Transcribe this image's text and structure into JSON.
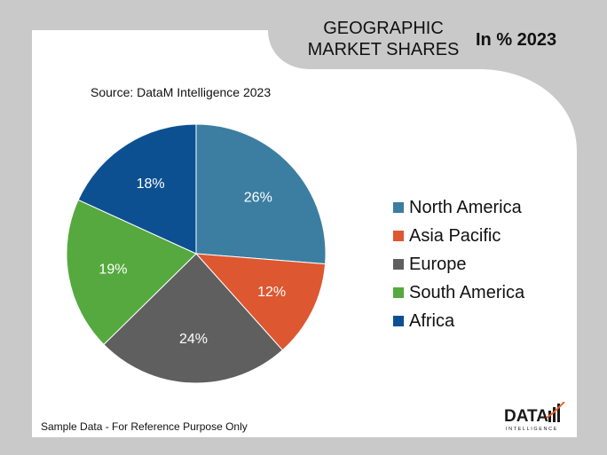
{
  "header": {
    "title_line1": "GEOGRAPHIC",
    "title_line2": "MARKET SHARES",
    "year_label": "In % 2023"
  },
  "source": "Source: DataM Intelligence  2023",
  "footnote": "Sample Data - For Reference Purpose Only",
  "logo": {
    "word": "DATA",
    "tagline": "INTELLIGENCE"
  },
  "colors": {
    "page_bg": "#c9c9c9",
    "panel_bg": "#ffffff",
    "logo_accent": "#e8622c"
  },
  "chart_data": {
    "type": "pie",
    "categories": [
      "North America",
      "Asia Pacific",
      "Europe",
      "South America",
      "Africa"
    ],
    "values": [
      26,
      12,
      24,
      19,
      18
    ],
    "labels": [
      "26%",
      "12%",
      "24%",
      "19%",
      "18%"
    ],
    "colors": [
      "#3b7ea1",
      "#dd5731",
      "#5f5f5f",
      "#55a93e",
      "#0d5092"
    ],
    "start_angle_deg": 0,
    "direction": "clockwise",
    "legend_position": "right",
    "unit": "%"
  }
}
